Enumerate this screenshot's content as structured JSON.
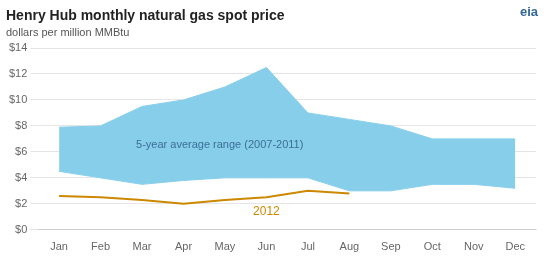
{
  "chart_data": {
    "type": "line",
    "title": "Henry Hub monthly natural gas spot price",
    "subtitle": "dollars per million MMBtu",
    "annotations": [
      "eia"
    ],
    "categories": [
      "Jan",
      "Feb",
      "Mar",
      "Apr",
      "May",
      "Jun",
      "Jul",
      "Aug",
      "Sep",
      "Oct",
      "Nov",
      "Dec"
    ],
    "series": [
      {
        "name": "5-year average range (2007-2011)",
        "type": "range",
        "color": "#87CEEB",
        "lower": [
          4.5,
          4.0,
          3.5,
          3.8,
          4.0,
          4.0,
          4.0,
          3.0,
          3.0,
          3.5,
          3.5,
          3.2
        ],
        "upper": [
          7.9,
          8.0,
          9.5,
          10.0,
          11.0,
          12.5,
          9.0,
          8.5,
          8.0,
          7.0,
          7.0,
          7.0
        ]
      },
      {
        "name": "2012",
        "type": "line",
        "color": "#CC8800",
        "values": [
          2.6,
          2.5,
          2.3,
          2.0,
          2.3,
          2.5,
          3.0,
          2.8,
          null,
          null,
          null,
          null
        ]
      }
    ],
    "ylim": [
      0,
      14
    ],
    "yticks": [
      {
        "value": 0,
        "label": "$0"
      },
      {
        "value": 2,
        "label": "$2"
      },
      {
        "value": 4,
        "label": "$4"
      },
      {
        "value": 6,
        "label": "$6"
      },
      {
        "value": 8,
        "label": "$8"
      },
      {
        "value": 10,
        "label": "$10"
      },
      {
        "value": 12,
        "label": "$12"
      },
      {
        "value": 14,
        "label": "$14"
      }
    ],
    "grid": true
  }
}
